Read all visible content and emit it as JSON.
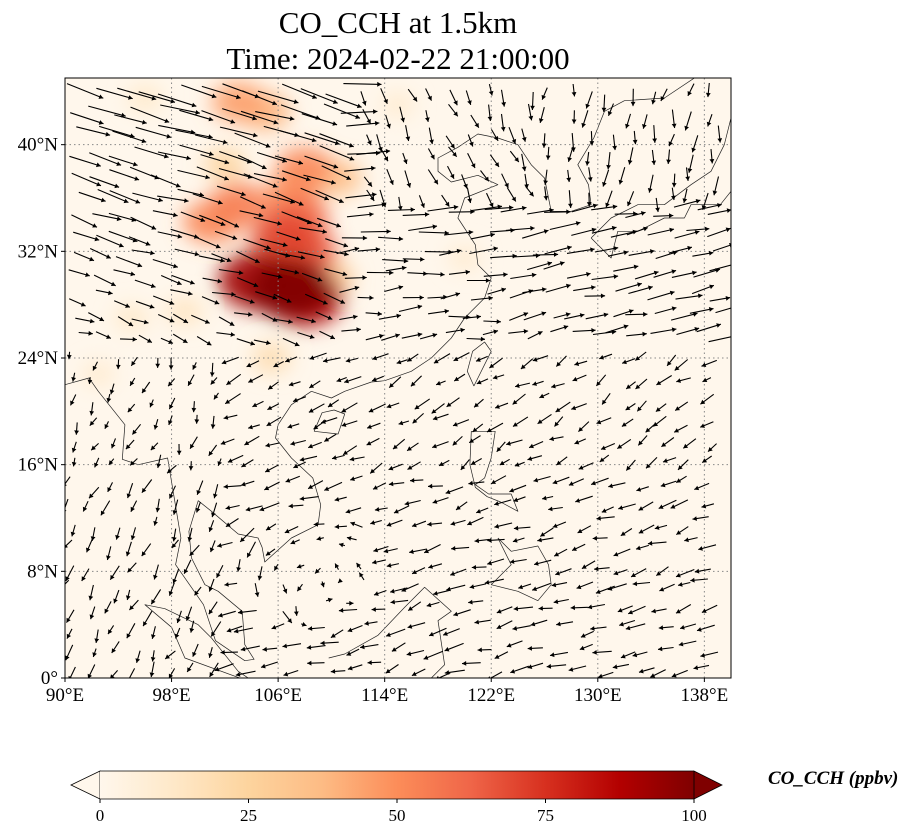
{
  "map": {
    "title_line1": "CO_CCH at 1.5km",
    "title_line2": "Time: 2024-02-22 21:00:00",
    "projection": "PlateCarree",
    "extent": {
      "lon": [
        90,
        140
      ],
      "lat": [
        0,
        45
      ]
    },
    "lon_ticks": [
      {
        "value": 90,
        "label": "90°E"
      },
      {
        "value": 98,
        "label": "98°E"
      },
      {
        "value": 106,
        "label": "106°E"
      },
      {
        "value": 114,
        "label": "114°E"
      },
      {
        "value": 122,
        "label": "122°E"
      },
      {
        "value": 130,
        "label": "130°E"
      },
      {
        "value": 138,
        "label": "138°E"
      }
    ],
    "lat_ticks": [
      {
        "value": 0,
        "label": "0°"
      },
      {
        "value": 8,
        "label": "8°N"
      },
      {
        "value": 16,
        "label": "16°N"
      },
      {
        "value": 24,
        "label": "24°N"
      },
      {
        "value": 32,
        "label": "32°N"
      },
      {
        "value": 40,
        "label": "40°N"
      }
    ],
    "gridlines": "dotted",
    "wind_vectors": "quiver arrows (black)",
    "colormap": "OrRd"
  },
  "colorbar": {
    "label": "CO_CCH (ppbv)",
    "min": 0,
    "max": 100,
    "extend": "both",
    "ticks": [
      "0",
      "25",
      "50",
      "75",
      "100"
    ],
    "colors": [
      "#fff7ec",
      "#fee8c8",
      "#fdd49e",
      "#fdbb84",
      "#fc8d59",
      "#ef6548",
      "#d7301f",
      "#b30000",
      "#7f0000"
    ]
  },
  "plumes": [
    {
      "lon": 107.0,
      "lat": 29.2,
      "value": 100
    },
    {
      "lon": 104.5,
      "lat": 29.8,
      "value": 92
    },
    {
      "lon": 108.0,
      "lat": 28.5,
      "value": 88
    },
    {
      "lon": 106.5,
      "lat": 33.0,
      "value": 70
    },
    {
      "lon": 108.0,
      "lat": 32.0,
      "value": 65
    },
    {
      "lon": 107.5,
      "lat": 34.5,
      "value": 60
    },
    {
      "lon": 103.0,
      "lat": 35.5,
      "value": 55
    },
    {
      "lon": 101.0,
      "lat": 34.2,
      "value": 52
    },
    {
      "lon": 108.0,
      "lat": 38.2,
      "value": 52
    },
    {
      "lon": 107.0,
      "lat": 36.2,
      "value": 48
    },
    {
      "lon": 110.5,
      "lat": 37.5,
      "value": 35
    },
    {
      "lon": 103.0,
      "lat": 43.2,
      "value": 45
    },
    {
      "lon": 105.0,
      "lat": 42.5,
      "value": 40
    },
    {
      "lon": 110.0,
      "lat": 30.0,
      "value": 30
    },
    {
      "lon": 102.0,
      "lat": 38.5,
      "value": 25
    },
    {
      "lon": 96.0,
      "lat": 43.5,
      "value": 12
    },
    {
      "lon": 115.0,
      "lat": 43.0,
      "value": 10
    },
    {
      "lon": 95.0,
      "lat": 27.0,
      "value": 12
    },
    {
      "lon": 99.0,
      "lat": 27.5,
      "value": 15
    },
    {
      "lon": 105.5,
      "lat": 24.0,
      "value": 20
    },
    {
      "lon": 120.0,
      "lat": 31.5,
      "value": 10
    },
    {
      "lon": 92.5,
      "lat": 22.8,
      "value": 10
    }
  ]
}
